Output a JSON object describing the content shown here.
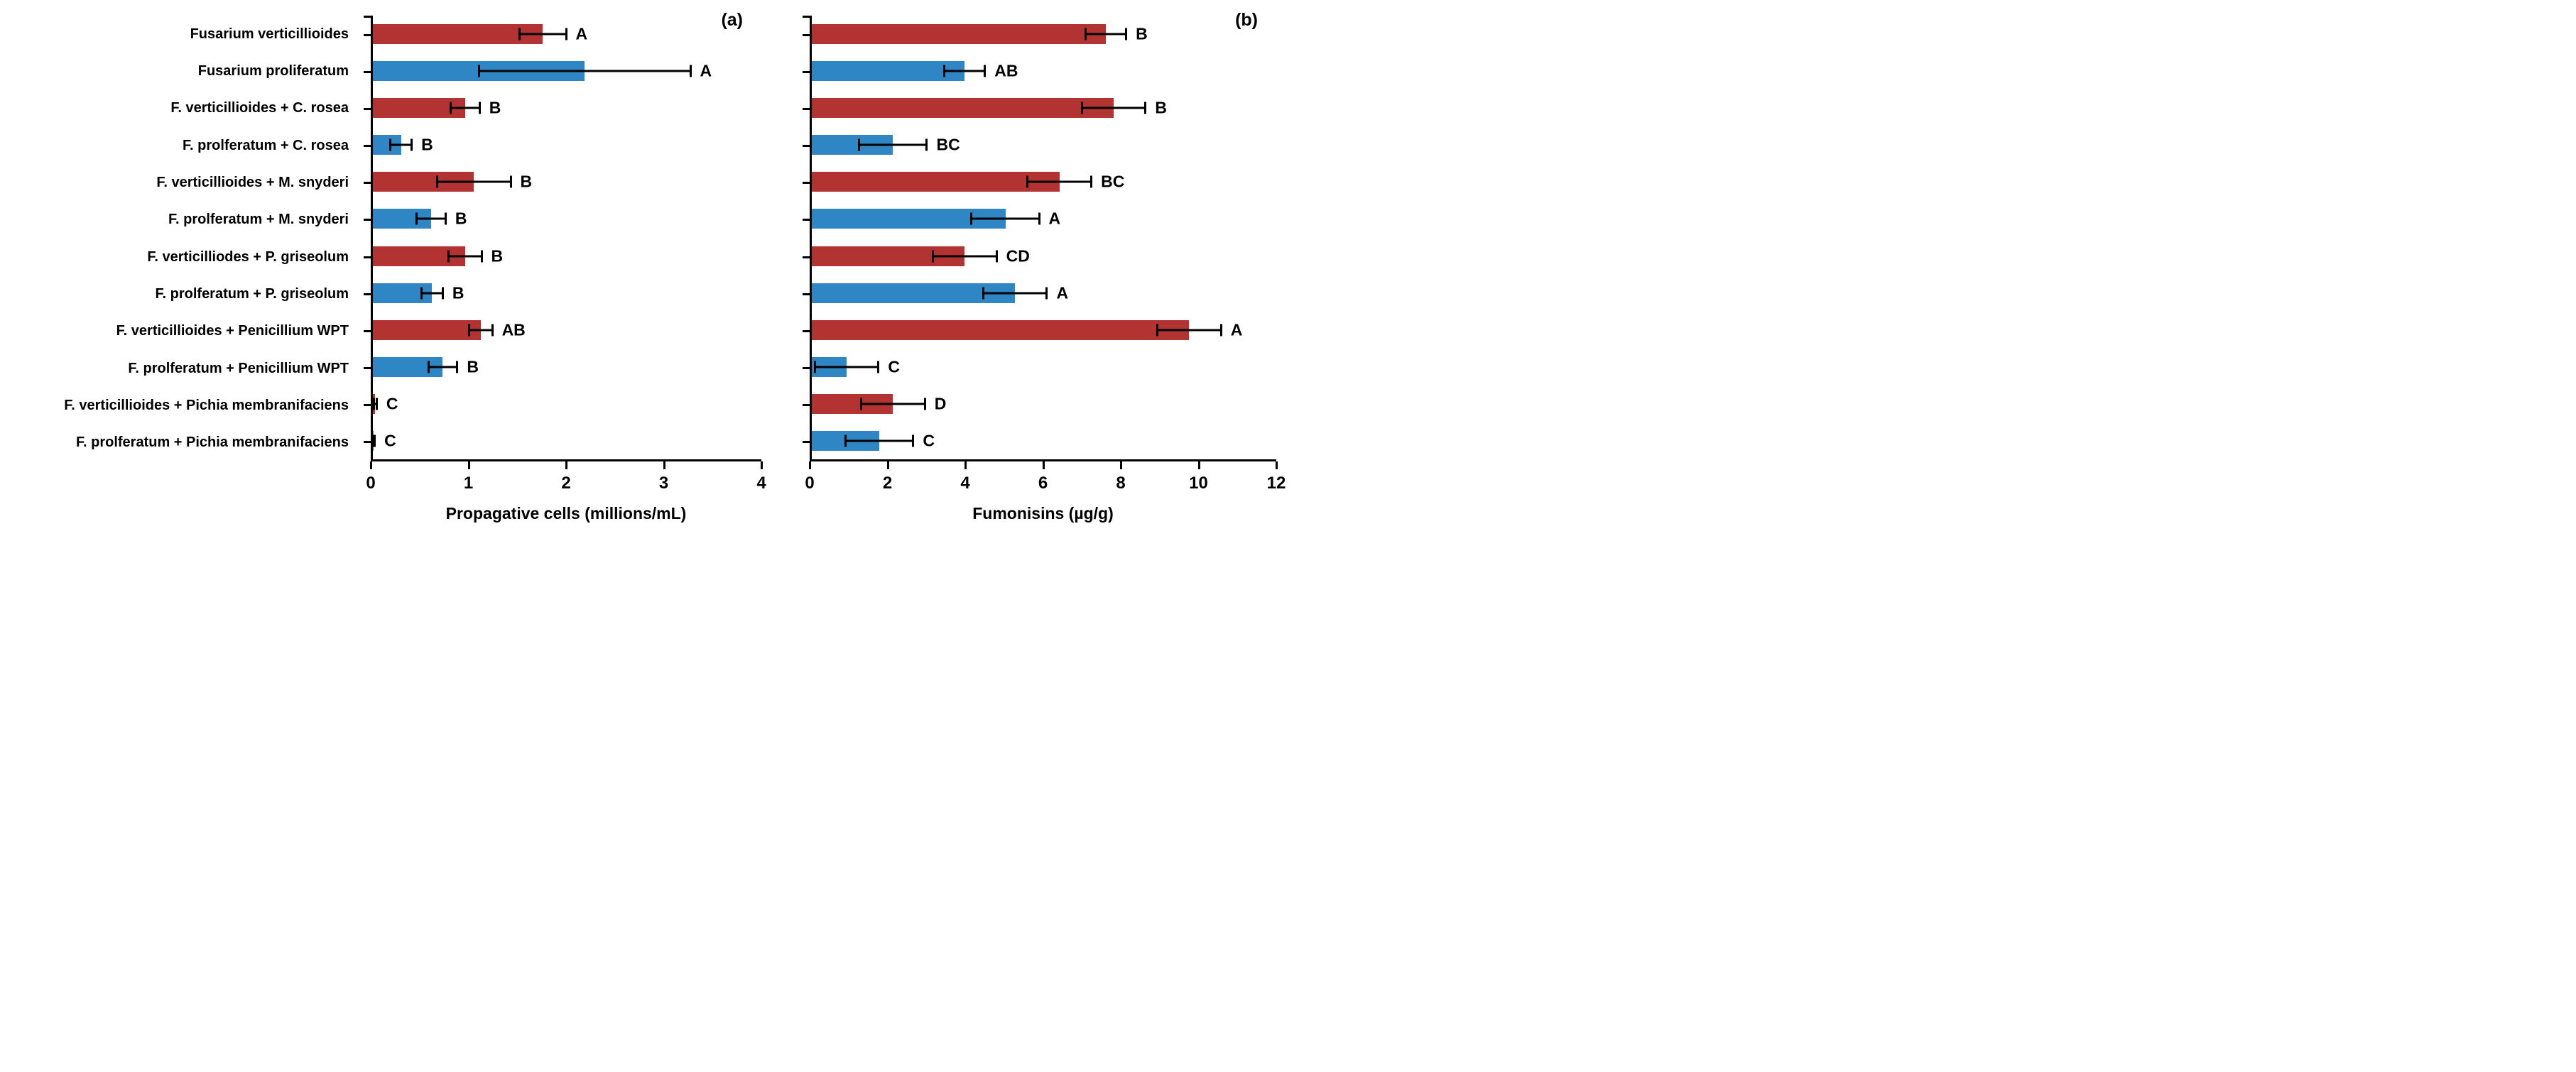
{
  "colors": {
    "red_bar": "#B23332",
    "blue_bar": "#2E86C5",
    "axis": "#000000",
    "background": "#FFFFFF"
  },
  "categories": [
    "Fusarium verticillioides",
    "Fusarium proliferatum",
    "F. verticillioides + C. rosea",
    "F. prolferatum + C. rosea",
    "F. verticillioides + M. snyderi",
    "F. prolferatum + M. snyderi",
    "F. verticilliodes + P. griseolum",
    "F. prolferatum + P. griseolum",
    "F. verticillioides + Penicillium WPT",
    "F. prolferatum + Penicillium WPT",
    "F. verticillioides + Pichia membranifaciens",
    "F. prolferatum + Pichia membranifaciens"
  ],
  "chart_data": [
    {
      "type": "bar",
      "orientation": "horizontal",
      "panel_label": "(a)",
      "xlabel": "Propagative cells (millions/mL)",
      "xlim": [
        0,
        4
      ],
      "xticks": [
        "0",
        "1",
        "2",
        "3",
        "4"
      ],
      "grid": false,
      "categories": [
        "Fusarium verticillioides",
        "Fusarium proliferatum",
        "F. verticillioides + C. rosea",
        "F. prolferatum + C. rosea",
        "F. verticillioides + M. snyderi",
        "F. prolferatum + M. snyderi",
        "F. verticilliodes + P. griseolum",
        "F. prolferatum + P. griseolum",
        "F. verticillioides + Penicillium WPT",
        "F. prolferatum + Penicillium WPT",
        "F. verticillioides + Pichia membranifaciens",
        "F. prolferatum + Pichia membranifaciens"
      ],
      "values": [
        1.75,
        2.18,
        0.95,
        0.29,
        1.04,
        0.6,
        0.95,
        0.61,
        1.11,
        0.72,
        0.02,
        0.01
      ],
      "errors": [
        0.25,
        1.1,
        0.16,
        0.12,
        0.39,
        0.16,
        0.18,
        0.12,
        0.13,
        0.16,
        0.03,
        0.02
      ],
      "letters": [
        "A",
        "A",
        "B",
        "B",
        "B",
        "B",
        "B",
        "B",
        "AB",
        "B",
        "C",
        "C"
      ]
    },
    {
      "type": "bar",
      "orientation": "horizontal",
      "panel_label": "(b)",
      "xlabel": "Fumonisins (µg/g)",
      "xlim": [
        0,
        12
      ],
      "xticks": [
        "0",
        "2",
        "4",
        "6",
        "8",
        "10",
        "12"
      ],
      "grid": false,
      "categories": [
        "Fusarium verticillioides",
        "Fusarium proliferatum",
        "F. verticillioides + C. rosea",
        "F. prolferatum + C. rosea",
        "F. verticillioides + M. snyderi",
        "F. prolferatum + M. snyderi",
        "F. verticilliodes + P. griseolum",
        "F. prolferatum + P. griseolum",
        "F. verticillioides + Penicillium WPT",
        "F. prolferatum + Penicillium WPT",
        "F. verticillioides + Pichia membranifaciens",
        "F. prolferatum + Pichia membranifaciens"
      ],
      "values": [
        7.6,
        3.95,
        7.8,
        2.1,
        6.4,
        5.0,
        3.95,
        5.25,
        9.75,
        0.9,
        2.1,
        1.75
      ],
      "errors": [
        0.55,
        0.55,
        0.85,
        0.9,
        0.85,
        0.9,
        0.85,
        0.85,
        0.85,
        0.85,
        0.85,
        0.9
      ],
      "letters": [
        "B",
        "AB",
        "B",
        "BC",
        "BC",
        "A",
        "CD",
        "A",
        "A",
        "C",
        "D",
        "C"
      ]
    }
  ]
}
